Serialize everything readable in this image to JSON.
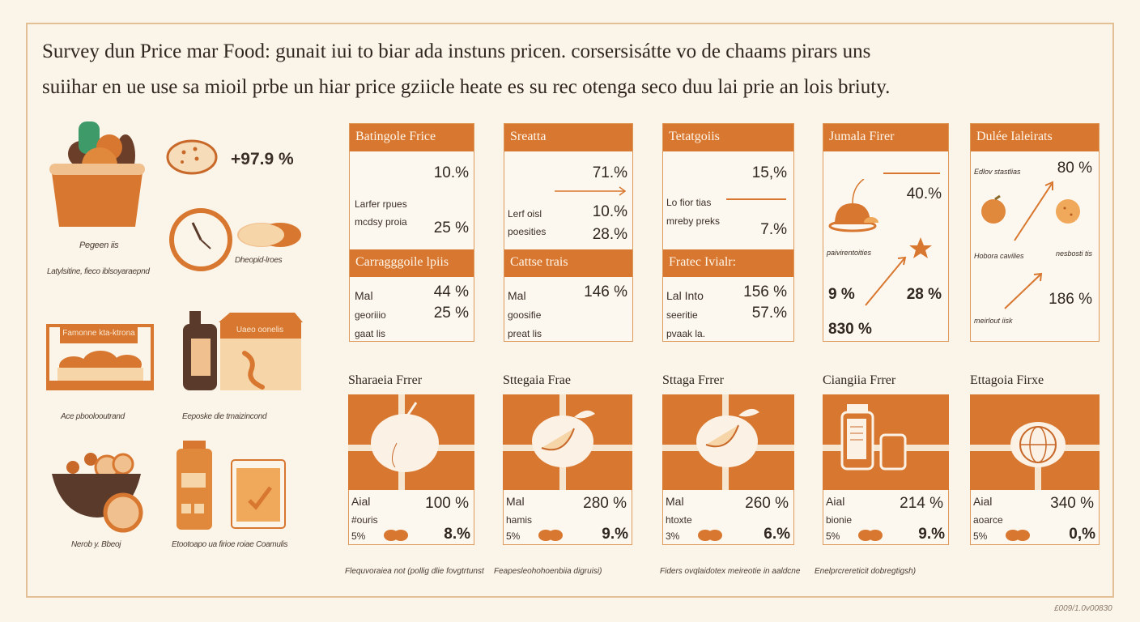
{
  "title": {
    "line1": "Survey dun Price mar Food: gunait iui to biar ada instuns pricen. corsersisátte vo de chaams pirars uns",
    "line2": "suiihar en ue use sa mioil prbe un hiar price gziicle heate es su rec otenga seco duu lai prie an lois briuty."
  },
  "left": {
    "basket_label": "Pegeen iis",
    "basket_sub": "Latylsitine, fieco iblsoyaraepnd",
    "cookie_value": "+97.9 %",
    "clock_label": "Dheopid-lroes",
    "display_sign": "Famonne kta-ktrona",
    "display_label": "Ace pboolooutrand",
    "box_sign": "Uaeo oonelis",
    "box_label": "Eeposke die tmaizincond",
    "bowl_label": "Nerob y. Bbeoj",
    "jar_label": "Etootoapo ua firioe roiae Coamulis"
  },
  "top_cards": [
    {
      "header": "Batingole Frice",
      "v1": "10.%",
      "l1": "Larfer rpues",
      "l2": "mcdsy proia",
      "v2": "25 %",
      "sub_header": "Carragggoile lpiis",
      "r1l": "Mal",
      "r1v": "44 %",
      "r2l": "georiiio",
      "r2v": "25 %",
      "r3l": "gaat lis"
    },
    {
      "header": "Sreatta",
      "v1": "71.%",
      "l1": "Lerf oisl",
      "v2": "10.%",
      "l2": "poesities",
      "v3": "28.%",
      "sub_header": "Cattse trais",
      "r1l": "Mal",
      "r1v": "146 %",
      "r2l": "goosifie",
      "r3l": "preat lis"
    },
    {
      "header": "Tetatgoiis",
      "v1": "15,%",
      "l1": "Lo fior tias",
      "l2": "mreby preks",
      "v2": "7.%",
      "sub_header": "Fratec Ivialr:",
      "r1l": "Lal Into",
      "r1v": "156 %",
      "r2l": "seeritie",
      "r2v": "57.%",
      "r3l": "pvaak la."
    },
    {
      "header": "Jumala Firer",
      "v1": "40.%",
      "l1": "paivirentoities",
      "v2": "9 %",
      "v3": "28 %",
      "v4": "830 %"
    },
    {
      "header": "Dulée Ialeirats",
      "l1": "Edlov stastlias",
      "v1": "80 %",
      "l2": "Hobora cavilies",
      "l3": "nesbosti tis",
      "v2": "186 %",
      "l4": "meirlout iisk"
    }
  ],
  "bottom_cards": [
    {
      "title": "Sharaeia Frrer",
      "r1l": "Aial",
      "r1v": "100 %",
      "r2l": "#ouris",
      "r3l": "5%",
      "r3v": "8.%"
    },
    {
      "title": "Sttegaia Frae",
      "r1l": "Mal",
      "r1v": "280 %",
      "r2l": "hamis",
      "r3l": "5%",
      "r3v": "9.%"
    },
    {
      "title": "Sttaga Frrer",
      "r1l": "Mal",
      "r1v": "260 %",
      "r2l": "htoxte",
      "r3l": "3%",
      "r3v": "6.%"
    },
    {
      "title": "Ciangiia Frrer",
      "r1l": "Aial",
      "r1v": "214 %",
      "r2l": "bionie",
      "r3l": "5%",
      "r3v": "9.%"
    },
    {
      "title": "Ettagoia Firxe",
      "r1l": "Aial",
      "r1v": "340 %",
      "r2l": "aoarce",
      "r3l": "5%",
      "r3v": "0,%"
    }
  ],
  "footnotes": [
    "Flequvoraiea not (pollig dlie fovgtrtunst",
    "Feapesleohohoenbiia digruisi)",
    "Fiders ovqlaidotex meireotie in aaldcne",
    "Enelprcrereticit dobregtigsh)"
  ],
  "code": "£009/1.0v00830",
  "colors": {
    "accent": "#d8772f",
    "background": "#fbf4e8",
    "border": "#e2bf95",
    "dark": "#5a3a2a"
  }
}
